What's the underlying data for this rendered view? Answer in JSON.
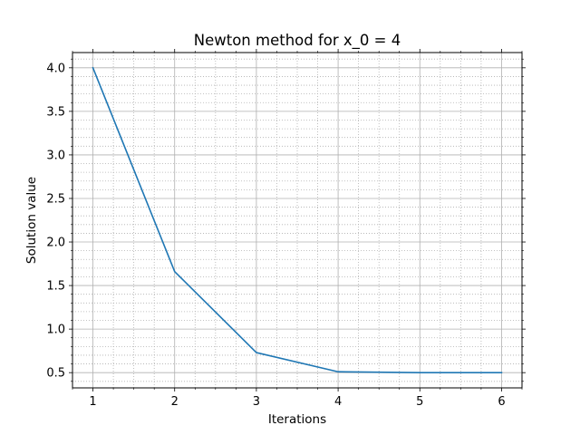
{
  "chart_data": {
    "type": "line",
    "title": "Newton method for x_0 = 4",
    "xlabel": "Iterations",
    "ylabel": "Solution value",
    "xlim": [
      0.75,
      6.25
    ],
    "ylim": [
      0.325,
      4.175
    ],
    "xticks": [
      1,
      2,
      3,
      4,
      5,
      6
    ],
    "xtick_labels": [
      "1",
      "2",
      "3",
      "4",
      "5",
      "6"
    ],
    "yticks": [
      0.5,
      1.0,
      1.5,
      2.0,
      2.5,
      3.0,
      3.5,
      4.0
    ],
    "ytick_labels": [
      "0.5",
      "1.0",
      "1.5",
      "2.0",
      "2.5",
      "3.0",
      "3.5",
      "4.0"
    ],
    "grid": true,
    "minor_grid": true,
    "series": [
      {
        "color": "#1f77b4",
        "x": [
          1,
          2,
          3,
          4,
          5,
          6
        ],
        "y": [
          4.0,
          1.66,
          0.73,
          0.51,
          0.5,
          0.5
        ]
      }
    ]
  }
}
